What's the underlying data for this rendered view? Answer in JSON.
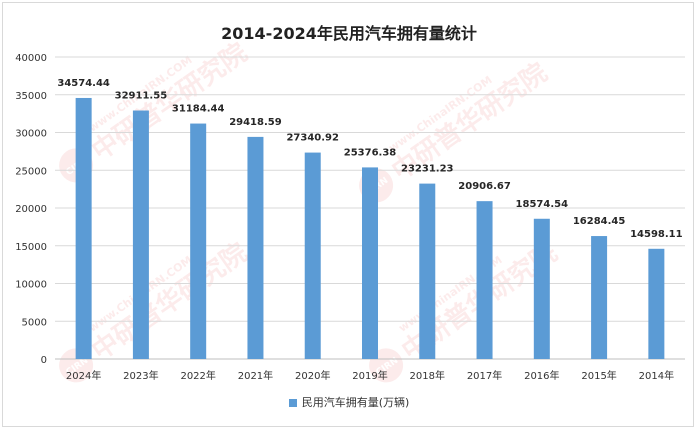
{
  "chart_data": {
    "type": "bar",
    "title": "2014-2024年民用汽车拥有量统计",
    "categories": [
      "2024年",
      "2023年",
      "2022年",
      "2021年",
      "2020年",
      "2019年",
      "2018年",
      "2017年",
      "2016年",
      "2015年",
      "2014年"
    ],
    "series": [
      {
        "name": "民用汽车拥有量(万辆)",
        "values": [
          34574.44,
          32911.55,
          31184.44,
          29418.59,
          27340.92,
          25376.38,
          23231.23,
          20906.67,
          18574.54,
          16284.45,
          14598.11
        ],
        "labels": [
          "34574.44",
          "32911.55",
          "31184.44",
          "29418.59",
          "27340.92",
          "25376.38",
          "23231.23",
          "20906.67",
          "18574.54",
          "16284.45",
          "14598.11"
        ]
      }
    ],
    "ylim": [
      0,
      40000
    ],
    "yticks": [
      0,
      5000,
      10000,
      15000,
      20000,
      25000,
      30000,
      35000,
      40000
    ],
    "grid": true,
    "legend_position": "bottom",
    "bar_color": "#5b9bd5"
  },
  "watermark": {
    "brand": "中研普华研究院",
    "url": "www.ChinaIRN.COM",
    "logo": "CIRN"
  }
}
